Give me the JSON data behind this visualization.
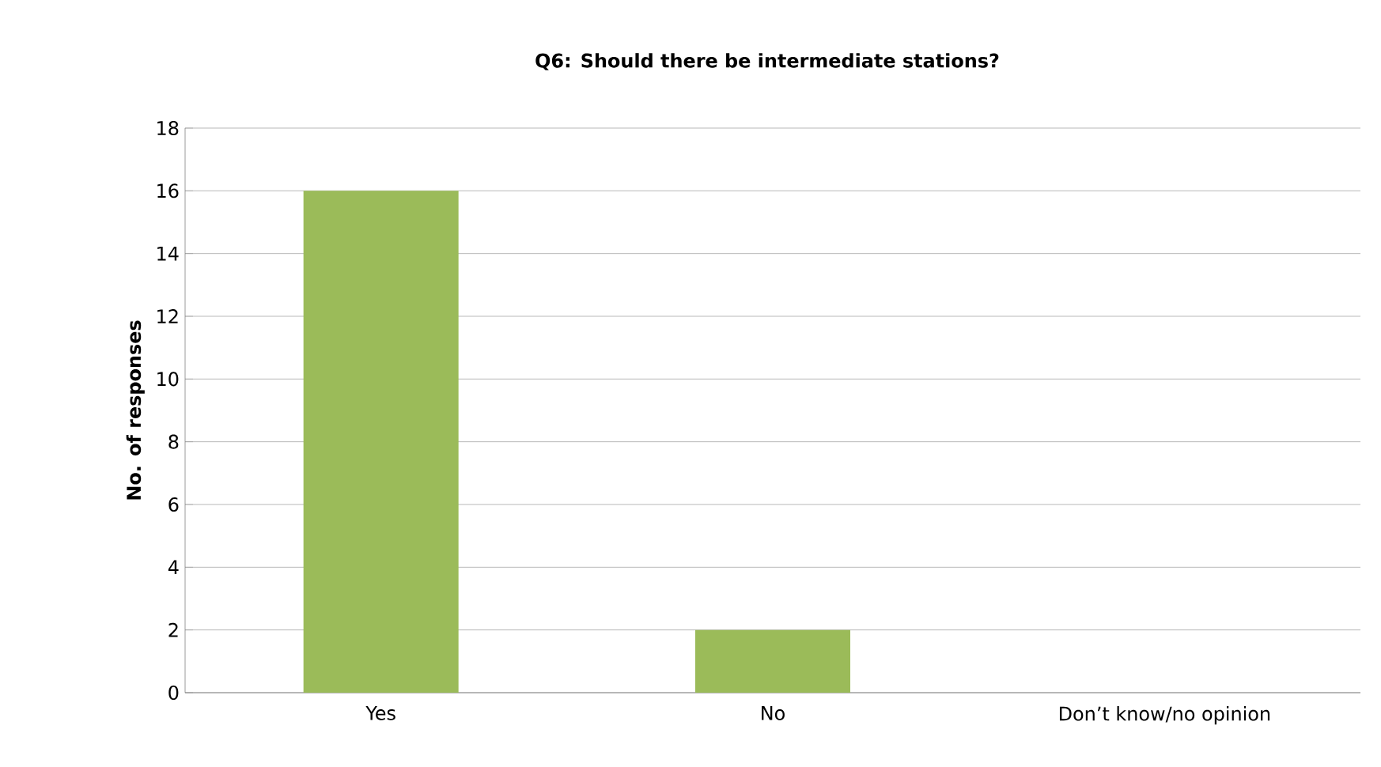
{
  "chart_data": {
    "type": "bar",
    "title": "Q6: Should there be intermediate stations?",
    "ylabel": "No. of responses",
    "categories": [
      "Yes",
      "No",
      "Don’t know/no opinion"
    ],
    "values": [
      16,
      2,
      0
    ],
    "color": "#9bbb59",
    "ylim": [
      0,
      18
    ],
    "yticks": [
      0,
      2,
      4,
      6,
      8,
      10,
      12,
      14,
      16,
      18
    ],
    "grid": "y"
  }
}
